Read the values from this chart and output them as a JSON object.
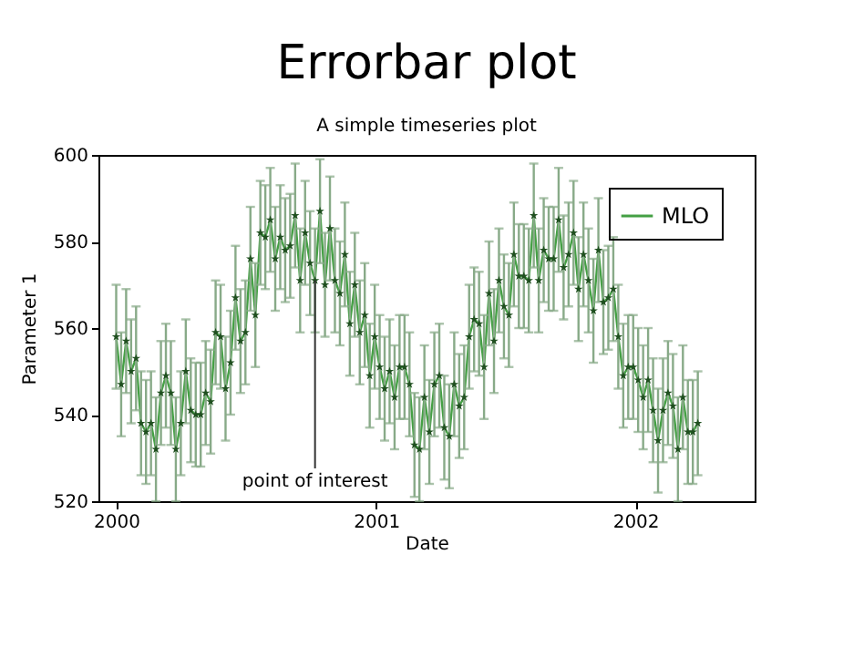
{
  "chart_data": {
    "type": "line",
    "title": "Errorbar plot",
    "subtitle": "A simple timeseries plot",
    "xlabel": "Date",
    "ylabel": "Parameter 1",
    "x": [
      "2000-01-01",
      "2000-01-08",
      "2000-01-15",
      "2000-01-22",
      "2000-01-29",
      "2000-02-05",
      "2000-02-12",
      "2000-02-19",
      "2000-02-26",
      "2000-03-04",
      "2000-03-11",
      "2000-03-18",
      "2000-03-25",
      "2000-04-01",
      "2000-04-08",
      "2000-04-15",
      "2000-04-22",
      "2000-04-29",
      "2000-05-06",
      "2000-05-13",
      "2000-05-20",
      "2000-05-27",
      "2000-06-03",
      "2000-06-10",
      "2000-06-17",
      "2000-06-24",
      "2000-07-01",
      "2000-07-08",
      "2000-07-15",
      "2000-07-22",
      "2000-07-29",
      "2000-08-05",
      "2000-08-12",
      "2000-08-19",
      "2000-08-26",
      "2000-09-02",
      "2000-09-09",
      "2000-09-16",
      "2000-09-23",
      "2000-09-30",
      "2000-10-07",
      "2000-10-14",
      "2000-10-21",
      "2000-10-28",
      "2000-11-04",
      "2000-11-11",
      "2000-11-18",
      "2000-11-25",
      "2000-12-02",
      "2000-12-09",
      "2000-12-16",
      "2000-12-23",
      "2000-12-30",
      "2001-01-06",
      "2001-01-13",
      "2001-01-20",
      "2001-01-27",
      "2001-02-03",
      "2001-02-10",
      "2001-02-17",
      "2001-02-24",
      "2001-03-03",
      "2001-03-10",
      "2001-03-17",
      "2001-03-24",
      "2001-03-31",
      "2001-04-07",
      "2001-04-14",
      "2001-04-21",
      "2001-04-28",
      "2001-05-05",
      "2001-05-12",
      "2001-05-19",
      "2001-05-26",
      "2001-06-02",
      "2001-06-09",
      "2001-06-16",
      "2001-06-23",
      "2001-06-30",
      "2001-07-07",
      "2001-07-14",
      "2001-07-21",
      "2001-07-28",
      "2001-08-04",
      "2001-08-11",
      "2001-08-18",
      "2001-08-25",
      "2001-09-01",
      "2001-09-08",
      "2001-09-15",
      "2001-09-22",
      "2001-09-29",
      "2001-10-06",
      "2001-10-13",
      "2001-10-20",
      "2001-10-27",
      "2001-11-03",
      "2001-11-10",
      "2001-11-17",
      "2001-11-24",
      "2001-12-01",
      "2001-12-08",
      "2001-12-15",
      "2001-12-22",
      "2001-12-29",
      "2002-01-05",
      "2002-01-12",
      "2002-01-19",
      "2002-01-26",
      "2002-02-02",
      "2002-02-09",
      "2002-02-16",
      "2002-02-23",
      "2002-03-02",
      "2002-03-09",
      "2002-03-16",
      "2002-03-23",
      "2002-03-30"
    ],
    "series": [
      {
        "name": "MLO",
        "color": "#44a044",
        "values": [
          558,
          547,
          557,
          550,
          553,
          538,
          536,
          538,
          532,
          545,
          549,
          545,
          532,
          538,
          550,
          541,
          540,
          540,
          545,
          543,
          559,
          558,
          546,
          552,
          567,
          557,
          559,
          576,
          563,
          582,
          581,
          585,
          576,
          581,
          578,
          579,
          586,
          571,
          582,
          575,
          571,
          587,
          570,
          583,
          571,
          568,
          577,
          561,
          570,
          559,
          563,
          549,
          558,
          551,
          546,
          550,
          544,
          551,
          551,
          547,
          533,
          532,
          544,
          536,
          547,
          549,
          537,
          535,
          547,
          542,
          544,
          558,
          562,
          561,
          551,
          568,
          557,
          571,
          565,
          563,
          577,
          572,
          572,
          571,
          586,
          571,
          578,
          576,
          576,
          585,
          574,
          577,
          582,
          569,
          577,
          571,
          564,
          578,
          566,
          567,
          569,
          558,
          549,
          551,
          551,
          548,
          544,
          548,
          541,
          534,
          541,
          545,
          542,
          532,
          544,
          536,
          536,
          538
        ],
        "errors": [
          12,
          12,
          12,
          12,
          12,
          12,
          12,
          12,
          12,
          12,
          12,
          12,
          12,
          12,
          12,
          12,
          12,
          12,
          12,
          12,
          12,
          12,
          12,
          12,
          12,
          12,
          12,
          12,
          12,
          12,
          12,
          12,
          12,
          12,
          12,
          12,
          12,
          12,
          12,
          12,
          12,
          12,
          12,
          12,
          12,
          12,
          12,
          12,
          12,
          12,
          12,
          12,
          12,
          12,
          12,
          12,
          12,
          12,
          12,
          12,
          12,
          12,
          12,
          12,
          12,
          12,
          12,
          12,
          12,
          12,
          12,
          12,
          12,
          12,
          12,
          12,
          12,
          12,
          12,
          12,
          12,
          12,
          12,
          12,
          12,
          12,
          12,
          12,
          12,
          12,
          12,
          12,
          12,
          12,
          12,
          12,
          12,
          12,
          12,
          12,
          12,
          12,
          12,
          12,
          12,
          12,
          12,
          12,
          12,
          12,
          12,
          12,
          12,
          12,
          12,
          12,
          12,
          12
        ]
      }
    ],
    "xlim": [
      "1999-12-07",
      "2002-06-18"
    ],
    "xticks": [
      "2000",
      "2001",
      "2002"
    ],
    "ylim": [
      520,
      600
    ],
    "yticks": [
      520,
      540,
      560,
      580,
      600
    ],
    "annotations": [
      {
        "text": "point of interest",
        "x": "2000-10-07",
        "y": 571
      }
    ],
    "marker": "star",
    "legend": "top right",
    "grid": false
  }
}
